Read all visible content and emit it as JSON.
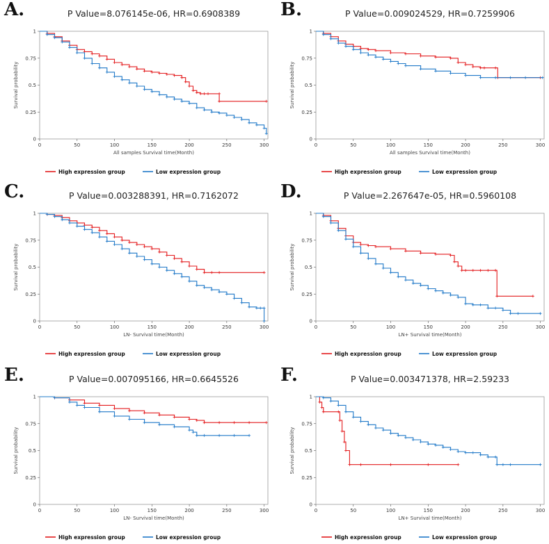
{
  "colors": {
    "high": "#e31a1c",
    "low": "#1f78c8"
  },
  "legend": {
    "high": "High expression group",
    "low": "Low expression group"
  },
  "chart_data": [
    {
      "letter": "A.",
      "type": "line",
      "title": "P Value=8.076145e-06, HR=0.6908389",
      "xlabel": "All samples Survival time(Month)",
      "ylabel": "Survival probability",
      "xlim": [
        0,
        305
      ],
      "ylim": [
        0,
        1
      ],
      "xticks": [
        0,
        50,
        100,
        150,
        200,
        250,
        300
      ],
      "xtick_labels": [
        "0",
        "50",
        "100",
        "150",
        "200",
        "250",
        "300"
      ],
      "yticks": [
        0,
        0.25,
        0.5,
        0.75,
        1
      ],
      "ytick_labels": [
        "0",
        "0.25",
        "0.5",
        "0.75",
        "1"
      ],
      "series": [
        {
          "name": "High expression group",
          "color": "high",
          "x": [
            0,
            10,
            20,
            30,
            40,
            50,
            60,
            70,
            80,
            90,
            100,
            110,
            120,
            130,
            140,
            150,
            160,
            170,
            180,
            190,
            195,
            200,
            205,
            210,
            215,
            220,
            225,
            240,
            240,
            303
          ],
          "y": [
            1,
            0.98,
            0.95,
            0.91,
            0.87,
            0.83,
            0.81,
            0.79,
            0.77,
            0.74,
            0.71,
            0.69,
            0.67,
            0.65,
            0.63,
            0.62,
            0.61,
            0.6,
            0.59,
            0.57,
            0.53,
            0.49,
            0.45,
            0.43,
            0.42,
            0.42,
            0.42,
            0.42,
            0.35,
            0.35
          ]
        },
        {
          "name": "Low expression group",
          "color": "low",
          "x": [
            0,
            10,
            20,
            30,
            40,
            50,
            60,
            70,
            80,
            90,
            100,
            110,
            120,
            130,
            140,
            150,
            160,
            170,
            180,
            190,
            200,
            210,
            220,
            230,
            240,
            250,
            260,
            270,
            280,
            290,
            300,
            303
          ],
          "y": [
            1,
            0.97,
            0.94,
            0.9,
            0.85,
            0.8,
            0.75,
            0.7,
            0.66,
            0.62,
            0.58,
            0.55,
            0.52,
            0.49,
            0.46,
            0.44,
            0.41,
            0.39,
            0.37,
            0.35,
            0.33,
            0.29,
            0.27,
            0.25,
            0.24,
            0.22,
            0.2,
            0.18,
            0.15,
            0.13,
            0.1,
            0.05
          ]
        }
      ]
    },
    {
      "letter": "B.",
      "type": "line",
      "title": "P Value=0.009024529, HR=0.7259906",
      "xlabel": "All samples Survival time(Month)",
      "ylabel": "Survival probability",
      "xlim": [
        0,
        305
      ],
      "ylim": [
        0,
        1
      ],
      "xticks": [
        0,
        50,
        100,
        150,
        200,
        250,
        300
      ],
      "xtick_labels": [
        "0",
        "50",
        "100",
        "150",
        "200",
        "250",
        "300"
      ],
      "yticks": [
        0,
        0.25,
        0.5,
        0.75,
        1
      ],
      "ytick_labels": [
        "0",
        "0.25",
        "0.5",
        "0.75",
        "1"
      ],
      "series": [
        {
          "name": "High expression group",
          "color": "high",
          "x": [
            0,
            10,
            20,
            30,
            40,
            50,
            60,
            70,
            80,
            100,
            120,
            140,
            160,
            180,
            190,
            200,
            210,
            220,
            225,
            240,
            243,
            300
          ],
          "y": [
            1,
            0.98,
            0.95,
            0.91,
            0.88,
            0.86,
            0.84,
            0.83,
            0.82,
            0.8,
            0.79,
            0.77,
            0.76,
            0.75,
            0.71,
            0.69,
            0.67,
            0.66,
            0.66,
            0.66,
            0.57,
            0.57
          ]
        },
        {
          "name": "Low expression group",
          "color": "low",
          "x": [
            0,
            10,
            20,
            30,
            40,
            50,
            60,
            70,
            80,
            90,
            100,
            110,
            120,
            140,
            160,
            180,
            200,
            220,
            240,
            260,
            280,
            303
          ],
          "y": [
            1,
            0.97,
            0.93,
            0.89,
            0.86,
            0.83,
            0.8,
            0.78,
            0.76,
            0.74,
            0.72,
            0.7,
            0.68,
            0.65,
            0.63,
            0.61,
            0.59,
            0.57,
            0.57,
            0.57,
            0.57,
            0.57
          ]
        }
      ]
    },
    {
      "letter": "C.",
      "type": "line",
      "title": "P Value=0.003288391, HR=0.7162072",
      "xlabel": "LN- Survival time(Month)",
      "ylabel": "Survival probability",
      "xlim": [
        0,
        305
      ],
      "ylim": [
        0,
        1
      ],
      "xticks": [
        0,
        50,
        100,
        150,
        200,
        250,
        300
      ],
      "xtick_labels": [
        "0",
        "50",
        "100",
        "150",
        "200",
        "250",
        "300"
      ],
      "yticks": [
        0,
        0.25,
        0.5,
        0.75,
        1
      ],
      "ytick_labels": [
        "0",
        "0.25",
        "0.5",
        "0.75",
        "1"
      ],
      "series": [
        {
          "name": "High expression group",
          "color": "high",
          "x": [
            0,
            10,
            20,
            30,
            40,
            50,
            60,
            70,
            80,
            90,
            100,
            110,
            120,
            130,
            140,
            150,
            160,
            170,
            180,
            190,
            200,
            210,
            220,
            230,
            240,
            300
          ],
          "y": [
            1,
            0.99,
            0.98,
            0.96,
            0.93,
            0.91,
            0.89,
            0.87,
            0.84,
            0.81,
            0.78,
            0.75,
            0.73,
            0.71,
            0.69,
            0.67,
            0.64,
            0.61,
            0.58,
            0.55,
            0.51,
            0.48,
            0.45,
            0.45,
            0.45,
            0.45
          ]
        },
        {
          "name": "Low expression group",
          "color": "low",
          "x": [
            0,
            10,
            20,
            30,
            40,
            50,
            60,
            70,
            80,
            90,
            100,
            110,
            120,
            130,
            140,
            150,
            160,
            170,
            180,
            190,
            200,
            210,
            220,
            230,
            240,
            250,
            260,
            270,
            280,
            290,
            295,
            300,
            300
          ],
          "y": [
            1,
            0.99,
            0.97,
            0.94,
            0.91,
            0.88,
            0.85,
            0.82,
            0.78,
            0.74,
            0.71,
            0.67,
            0.63,
            0.6,
            0.57,
            0.53,
            0.5,
            0.47,
            0.44,
            0.41,
            0.37,
            0.33,
            0.31,
            0.29,
            0.27,
            0.25,
            0.21,
            0.17,
            0.13,
            0.12,
            0.12,
            0.12,
            0
          ]
        }
      ]
    },
    {
      "letter": "D.",
      "type": "line",
      "title": "P Value=2.267647e-05, HR=0.5960108",
      "xlabel": "LN+ Survival time(Month)",
      "ylabel": "Survival probability",
      "xlim": [
        0,
        305
      ],
      "ylim": [
        0,
        1
      ],
      "xticks": [
        0,
        50,
        100,
        150,
        200,
        250,
        300
      ],
      "xtick_labels": [
        "0",
        "50",
        "100",
        "150",
        "200",
        "250",
        "300"
      ],
      "yticks": [
        0,
        0.25,
        0.5,
        0.75,
        1
      ],
      "ytick_labels": [
        "0",
        "0.25",
        "0.5",
        "0.75",
        "1"
      ],
      "series": [
        {
          "name": "High expression group",
          "color": "high",
          "x": [
            0,
            10,
            20,
            30,
            40,
            50,
            60,
            70,
            80,
            100,
            120,
            140,
            160,
            180,
            185,
            190,
            195,
            200,
            210,
            220,
            230,
            240,
            242,
            290
          ],
          "y": [
            1,
            0.98,
            0.93,
            0.86,
            0.79,
            0.73,
            0.71,
            0.7,
            0.69,
            0.67,
            0.65,
            0.63,
            0.62,
            0.61,
            0.55,
            0.51,
            0.47,
            0.47,
            0.47,
            0.47,
            0.47,
            0.47,
            0.23,
            0.23
          ]
        },
        {
          "name": "Low expression group",
          "color": "low",
          "x": [
            0,
            10,
            20,
            30,
            40,
            50,
            60,
            70,
            80,
            90,
            100,
            110,
            120,
            130,
            140,
            150,
            160,
            170,
            180,
            190,
            200,
            210,
            220,
            230,
            240,
            250,
            260,
            270,
            300
          ],
          "y": [
            1,
            0.97,
            0.91,
            0.84,
            0.76,
            0.69,
            0.63,
            0.58,
            0.53,
            0.49,
            0.45,
            0.41,
            0.38,
            0.35,
            0.33,
            0.3,
            0.28,
            0.26,
            0.24,
            0.22,
            0.16,
            0.15,
            0.15,
            0.12,
            0.12,
            0.1,
            0.07,
            0.07,
            0.07
          ]
        }
      ]
    },
    {
      "letter": "E.",
      "type": "line",
      "title": "P Value=0.007095166, HR=0.6645526",
      "xlabel": "LN- Survival time(Month)",
      "ylabel": "Survival probability",
      "xlim": [
        0,
        305
      ],
      "ylim": [
        0,
        1
      ],
      "xticks": [
        0,
        50,
        100,
        150,
        200,
        250,
        300
      ],
      "xtick_labels": [
        "0",
        "50",
        "100",
        "150",
        "200",
        "250",
        "300"
      ],
      "yticks": [
        0,
        0.25,
        0.5,
        0.75,
        1
      ],
      "ytick_labels": [
        "0",
        "0.25",
        "0.5",
        "0.75",
        "1"
      ],
      "series": [
        {
          "name": "High expression group",
          "color": "high",
          "x": [
            0,
            20,
            40,
            60,
            80,
            100,
            120,
            140,
            160,
            180,
            200,
            210,
            220,
            240,
            260,
            280,
            303
          ],
          "y": [
            1,
            0.99,
            0.97,
            0.94,
            0.92,
            0.89,
            0.87,
            0.85,
            0.83,
            0.81,
            0.79,
            0.78,
            0.76,
            0.76,
            0.76,
            0.76,
            0.76
          ]
        },
        {
          "name": "Low expression group",
          "color": "low",
          "x": [
            0,
            20,
            40,
            50,
            60,
            80,
            100,
            120,
            140,
            160,
            180,
            200,
            205,
            210,
            220,
            240,
            260,
            280
          ],
          "y": [
            1,
            0.99,
            0.95,
            0.92,
            0.9,
            0.86,
            0.82,
            0.79,
            0.76,
            0.74,
            0.72,
            0.69,
            0.67,
            0.64,
            0.64,
            0.64,
            0.64,
            0.64
          ]
        }
      ]
    },
    {
      "letter": "F.",
      "type": "line",
      "title": "P Value=0.003471378, HR=2.59233",
      "xlabel": "LN+ Survival time(Month)",
      "ylabel": "Survival probability",
      "xlim": [
        0,
        305
      ],
      "ylim": [
        0,
        1
      ],
      "xticks": [
        0,
        50,
        100,
        150,
        200,
        250,
        300
      ],
      "xtick_labels": [
        "0",
        "50",
        "100",
        "150",
        "200",
        "250",
        "300"
      ],
      "yticks": [
        0,
        0.25,
        0.5,
        0.75,
        1
      ],
      "ytick_labels": [
        "0",
        "0.25",
        "0.5",
        "0.75",
        "1"
      ],
      "series": [
        {
          "name": "High expression group",
          "color": "high",
          "x": [
            0,
            5,
            8,
            10,
            30,
            32,
            35,
            38,
            40,
            45,
            60,
            100,
            150,
            190
          ],
          "y": [
            1,
            0.95,
            0.9,
            0.86,
            0.86,
            0.78,
            0.68,
            0.58,
            0.5,
            0.37,
            0.37,
            0.37,
            0.37,
            0.37
          ]
        },
        {
          "name": "Low expression group",
          "color": "low",
          "x": [
            0,
            10,
            20,
            30,
            40,
            50,
            60,
            70,
            80,
            90,
            100,
            110,
            120,
            130,
            140,
            150,
            160,
            170,
            180,
            190,
            200,
            210,
            220,
            230,
            240,
            242,
            250,
            260,
            300
          ],
          "y": [
            1,
            0.99,
            0.96,
            0.92,
            0.86,
            0.81,
            0.77,
            0.74,
            0.71,
            0.69,
            0.66,
            0.64,
            0.62,
            0.6,
            0.58,
            0.56,
            0.55,
            0.53,
            0.51,
            0.49,
            0.48,
            0.48,
            0.46,
            0.44,
            0.44,
            0.37,
            0.37,
            0.37,
            0.37
          ]
        }
      ]
    }
  ]
}
